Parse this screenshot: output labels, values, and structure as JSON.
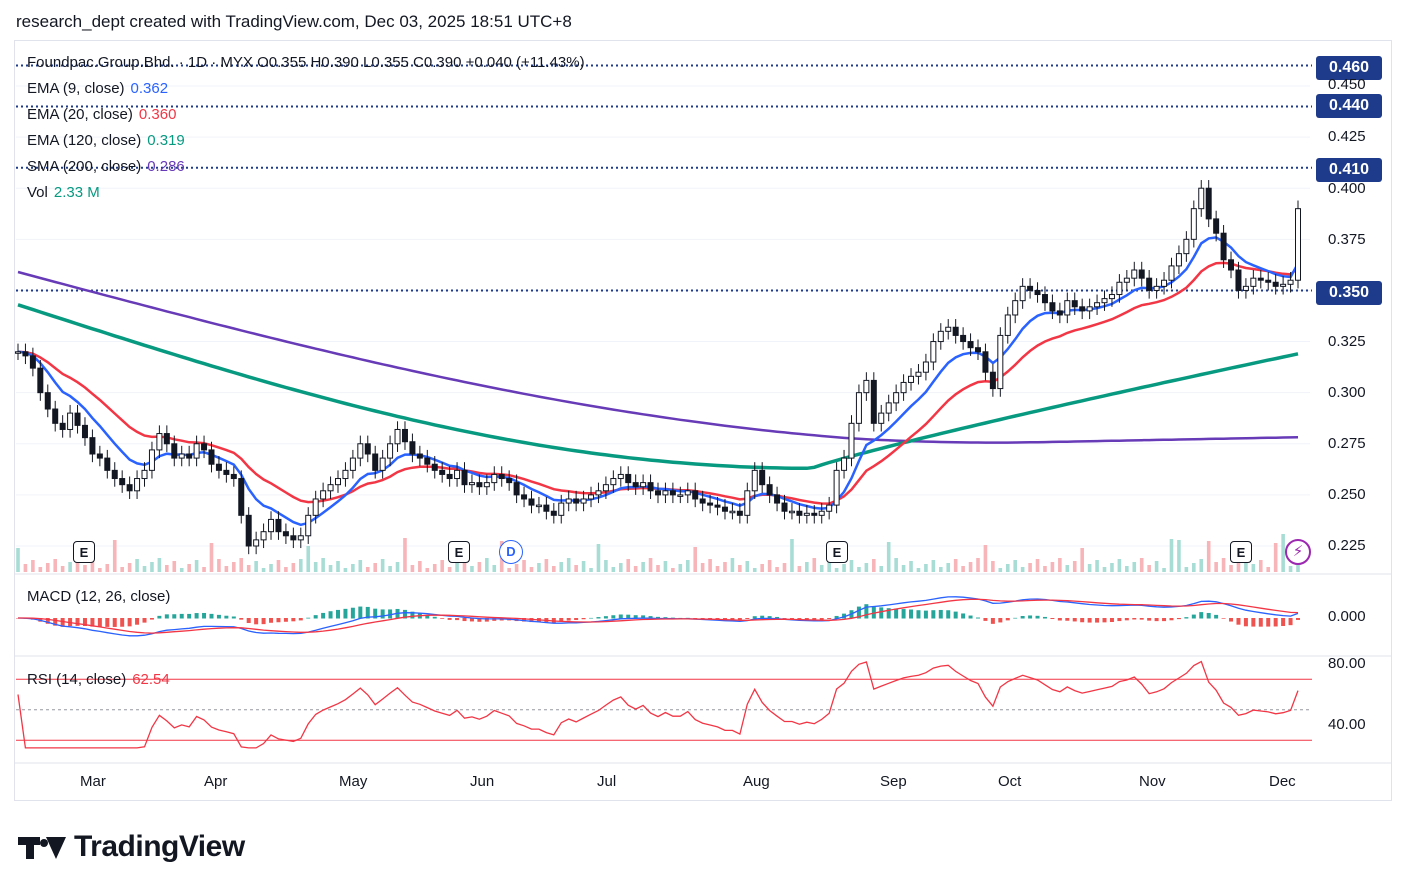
{
  "header": {
    "text": "research_dept created with TradingView.com, Dec 03, 2025 18:51 UTC+8"
  },
  "legend": {
    "symbol_line": "Foundpac.Group.Bhd. · 1D · MYX  O0.355  H0.390  L0.355  C0.390  +0.040 (+11.43%)",
    "ema9": {
      "label": "EMA (9, close)",
      "value": "0.362",
      "color": "#2962ff"
    },
    "ema20": {
      "label": "EMA (20, close)",
      "value": "0.360",
      "color": "#f23645"
    },
    "ema120": {
      "label": "EMA (120, close)",
      "value": "0.319",
      "color": "#089981"
    },
    "sma200": {
      "label": "SMA (200, close)",
      "value": "0.286",
      "color": "#673ab7"
    },
    "vol": {
      "label": "Vol",
      "value": "2.33 M",
      "color": "#089981"
    }
  },
  "macd": {
    "label": "MACD (12, 26, close)"
  },
  "rsi": {
    "label": "RSI (14, close)",
    "value": "62.54",
    "color": "#f23645"
  },
  "price_tags": [
    "0.460",
    "0.440",
    "0.410",
    "0.350"
  ],
  "price_axis": [
    "0.450",
    "0.425",
    "0.400",
    "0.375",
    "0.325",
    "0.300",
    "0.275",
    "0.250",
    "0.225"
  ],
  "macd_axis": [
    "0.000"
  ],
  "rsi_axis": [
    "80.00",
    "40.00"
  ],
  "time_axis": [
    "Mar",
    "Apr",
    "May",
    "Jun",
    "Jul",
    "Aug",
    "Sep",
    "Oct",
    "Nov",
    "Dec"
  ],
  "events": {
    "earnings": "E",
    "dividend": "D",
    "bolt_icon": "lightning-icon"
  },
  "logo": {
    "text": "TradingView"
  },
  "colors": {
    "up": "#089981",
    "down": "#f23645",
    "candle_up": "#ffffff",
    "candle_down": "#131722",
    "ema9": "#2962ff",
    "ema20": "#f23645",
    "ema120": "#089981",
    "sma200": "#673ab7",
    "level_line": "#1e3a8a"
  },
  "chart_data": {
    "type": "candlestick",
    "symbol": "Foundpac.Group.Bhd.",
    "interval": "1D",
    "exchange": "MYX",
    "ohlc_last": {
      "open": 0.355,
      "high": 0.39,
      "low": 0.355,
      "close": 0.39,
      "change": 0.04,
      "change_pct": 11.43
    },
    "ylim": [
      0.215,
      0.465
    ],
    "horizontal_levels": [
      0.46,
      0.44,
      0.41,
      0.35
    ],
    "x_labels": [
      "Mar",
      "Apr",
      "May",
      "Jun",
      "Jul",
      "Aug",
      "Sep",
      "Oct",
      "Nov",
      "Dec"
    ],
    "close_series": [
      0.32,
      0.318,
      0.312,
      0.3,
      0.292,
      0.285,
      0.282,
      0.29,
      0.284,
      0.278,
      0.27,
      0.268,
      0.262,
      0.258,
      0.255,
      0.252,
      0.258,
      0.262,
      0.272,
      0.28,
      0.275,
      0.268,
      0.27,
      0.268,
      0.275,
      0.272,
      0.265,
      0.262,
      0.26,
      0.258,
      0.24,
      0.225,
      0.228,
      0.232,
      0.238,
      0.232,
      0.23,
      0.228,
      0.23,
      0.24,
      0.248,
      0.252,
      0.255,
      0.258,
      0.262,
      0.268,
      0.275,
      0.27,
      0.262,
      0.268,
      0.275,
      0.282,
      0.276,
      0.27,
      0.268,
      0.265,
      0.262,
      0.26,
      0.258,
      0.262,
      0.255,
      0.256,
      0.254,
      0.256,
      0.26,
      0.258,
      0.256,
      0.25,
      0.248,
      0.245,
      0.245,
      0.242,
      0.24,
      0.246,
      0.248,
      0.246,
      0.248,
      0.25,
      0.252,
      0.255,
      0.258,
      0.26,
      0.256,
      0.254,
      0.256,
      0.252,
      0.25,
      0.252,
      0.25,
      0.25,
      0.252,
      0.248,
      0.246,
      0.245,
      0.244,
      0.242,
      0.242,
      0.24,
      0.252,
      0.262,
      0.255,
      0.25,
      0.246,
      0.242,
      0.242,
      0.24,
      0.241,
      0.24,
      0.242,
      0.245,
      0.262,
      0.268,
      0.285,
      0.3,
      0.306,
      0.285,
      0.29,
      0.295,
      0.3,
      0.305,
      0.308,
      0.31,
      0.315,
      0.325,
      0.33,
      0.332,
      0.328,
      0.325,
      0.322,
      0.32,
      0.31,
      0.302,
      0.328,
      0.338,
      0.345,
      0.352,
      0.35,
      0.348,
      0.344,
      0.34,
      0.338,
      0.345,
      0.342,
      0.34,
      0.342,
      0.344,
      0.346,
      0.348,
      0.354,
      0.356,
      0.36,
      0.356,
      0.35,
      0.352,
      0.355,
      0.362,
      0.368,
      0.375,
      0.39,
      0.4,
      0.385,
      0.378,
      0.365,
      0.36,
      0.35,
      0.352,
      0.356,
      0.355,
      0.354,
      0.352,
      0.353,
      0.355,
      0.39
    ],
    "ema9_last": 0.362,
    "ema20_last": 0.36,
    "ema120_last": 0.319,
    "sma200_last": 0.286,
    "volume_last": "2.33 M",
    "rsi_last": 62.54,
    "rsi_levels": [
      70,
      50,
      30
    ],
    "rsi_axis": [
      80,
      40
    ]
  }
}
